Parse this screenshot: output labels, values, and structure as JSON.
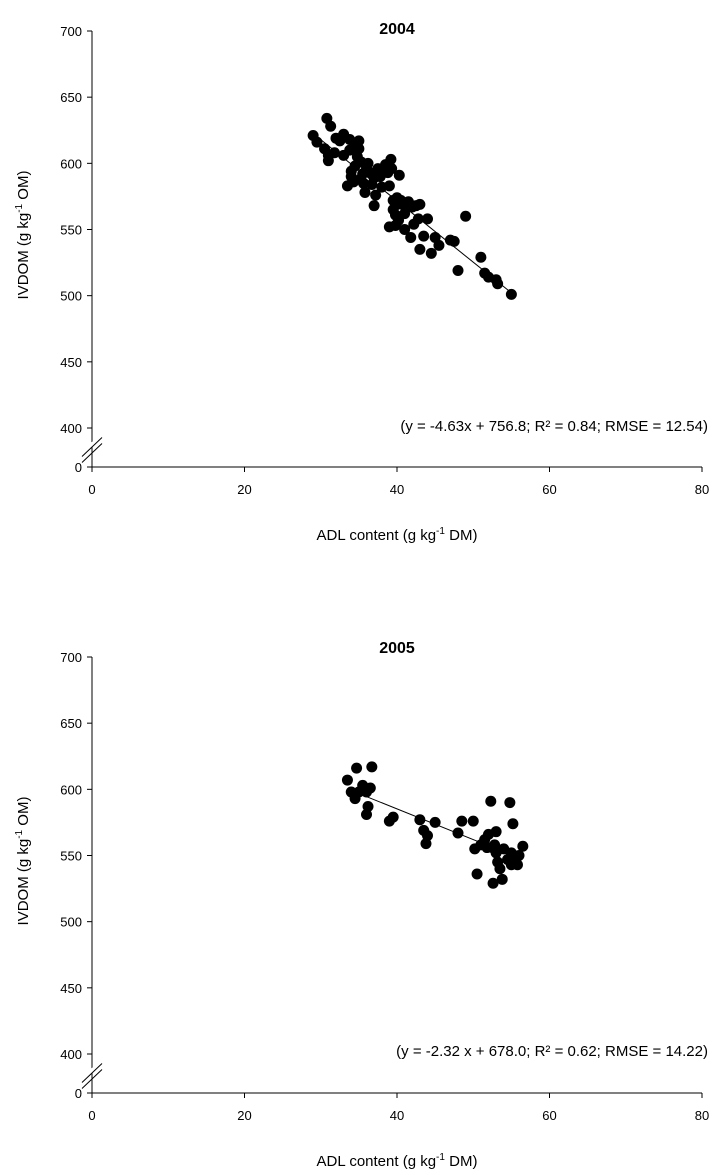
{
  "chart_data": [
    {
      "type": "scatter",
      "title": "2004",
      "xlabel": "ADL content (g kg",
      "xlabel_sup": "-1",
      "xlabel_tail": " DM)",
      "ylabel": "IVDOM (g kg",
      "ylabel_sup": "-1",
      "ylabel_tail": " OM)",
      "equation": "(y = -4.63x + 756.8; R² = 0.84; RMSE = 12.54)",
      "xlim": [
        0,
        80
      ],
      "ylim": [
        400,
        700
      ],
      "x_ticks": [
        "0",
        "20",
        "40",
        "60",
        "80"
      ],
      "y_ticks": [
        "400",
        "450",
        "500",
        "550",
        "600",
        "650",
        "700"
      ],
      "y_zero_tick": "0",
      "broken_axis": true,
      "fit": {
        "slope": -4.63,
        "intercept": 756.8,
        "x_range": [
          29,
          55.5
        ]
      },
      "points": [
        [
          29,
          621
        ],
        [
          29.5,
          616
        ],
        [
          30.5,
          611
        ],
        [
          30.8,
          634
        ],
        [
          31,
          606
        ],
        [
          31,
          602
        ],
        [
          31.3,
          628
        ],
        [
          31.8,
          608
        ],
        [
          32,
          619
        ],
        [
          32.5,
          617
        ],
        [
          33,
          606
        ],
        [
          33,
          622
        ],
        [
          33.5,
          583
        ],
        [
          33.8,
          618
        ],
        [
          33.8,
          610
        ],
        [
          34,
          590
        ],
        [
          34,
          594
        ],
        [
          34.3,
          586
        ],
        [
          34.5,
          615
        ],
        [
          34.5,
          598
        ],
        [
          34.8,
          605
        ],
        [
          35,
          617
        ],
        [
          35,
          611
        ],
        [
          35.2,
          588
        ],
        [
          35.3,
          601
        ],
        [
          35.5,
          592
        ],
        [
          35.6,
          585
        ],
        [
          35.8,
          578
        ],
        [
          36,
          596
        ],
        [
          36.2,
          600
        ],
        [
          36.5,
          593
        ],
        [
          36.7,
          584
        ],
        [
          37,
          568
        ],
        [
          37,
          589
        ],
        [
          37.2,
          576
        ],
        [
          37.5,
          596
        ],
        [
          37.8,
          590
        ],
        [
          38,
          582
        ],
        [
          38.2,
          595
        ],
        [
          38.5,
          599
        ],
        [
          38.8,
          593
        ],
        [
          39,
          583
        ],
        [
          39,
          552
        ],
        [
          39.2,
          603
        ],
        [
          39.3,
          596
        ],
        [
          39.5,
          572
        ],
        [
          39.5,
          565
        ],
        [
          39.8,
          553
        ],
        [
          39.8,
          561
        ],
        [
          40,
          569
        ],
        [
          40,
          574
        ],
        [
          40.2,
          557
        ],
        [
          40.3,
          591
        ],
        [
          40.5,
          572
        ],
        [
          40.7,
          569
        ],
        [
          41,
          562
        ],
        [
          41,
          550
        ],
        [
          41.2,
          567
        ],
        [
          41.5,
          571
        ],
        [
          41.8,
          544
        ],
        [
          42,
          567
        ],
        [
          42.2,
          554
        ],
        [
          42.5,
          568
        ],
        [
          42.8,
          558
        ],
        [
          43,
          569
        ],
        [
          43,
          535
        ],
        [
          43.5,
          545
        ],
        [
          44,
          558
        ],
        [
          44.5,
          532
        ],
        [
          45,
          544
        ],
        [
          45.5,
          538
        ],
        [
          47,
          542
        ],
        [
          47.5,
          541
        ],
        [
          48,
          519
        ],
        [
          49,
          560
        ],
        [
          51,
          529
        ],
        [
          51.5,
          517
        ],
        [
          52,
          514
        ],
        [
          53,
          512
        ],
        [
          53.2,
          509
        ],
        [
          55,
          501
        ]
      ]
    },
    {
      "type": "scatter",
      "title": "2005",
      "xlabel": "ADL content (g kg",
      "xlabel_sup": "-1",
      "xlabel_tail": " DM)",
      "ylabel": "IVDOM (g kg",
      "ylabel_sup": "-1",
      "ylabel_tail": " OM)",
      "equation": "(y = -2.32 x + 678.0; R² = 0.62; RMSE = 14.22)",
      "xlim": [
        0,
        80
      ],
      "ylim": [
        400,
        700
      ],
      "x_ticks": [
        "0",
        "20",
        "40",
        "60",
        "80"
      ],
      "y_ticks": [
        "400",
        "450",
        "500",
        "550",
        "600",
        "650",
        "700"
      ],
      "y_zero_tick": "0",
      "broken_axis": true,
      "fit": {
        "slope": -2.32,
        "intercept": 678.0,
        "x_range": [
          33.5,
          56
        ]
      },
      "points": [
        [
          33.5,
          607
        ],
        [
          34,
          598
        ],
        [
          34.5,
          593
        ],
        [
          34.7,
          616
        ],
        [
          35,
          598
        ],
        [
          35.5,
          603
        ],
        [
          36,
          598
        ],
        [
          36,
          581
        ],
        [
          36.2,
          587
        ],
        [
          36.5,
          601
        ],
        [
          36.7,
          617
        ],
        [
          39,
          576
        ],
        [
          39.5,
          579
        ],
        [
          43,
          577
        ],
        [
          43.5,
          569
        ],
        [
          43.8,
          559
        ],
        [
          44,
          565
        ],
        [
          45,
          575
        ],
        [
          48,
          567
        ],
        [
          48.5,
          576
        ],
        [
          50,
          576
        ],
        [
          50.2,
          555
        ],
        [
          50.5,
          536
        ],
        [
          51,
          558
        ],
        [
          51.5,
          562
        ],
        [
          51.8,
          556
        ],
        [
          52,
          566
        ],
        [
          52.3,
          591
        ],
        [
          52.5,
          556
        ],
        [
          52.6,
          529
        ],
        [
          52.8,
          558
        ],
        [
          53,
          568
        ],
        [
          53,
          552
        ],
        [
          53.2,
          545
        ],
        [
          53.5,
          540
        ],
        [
          53.8,
          532
        ],
        [
          54,
          555
        ],
        [
          54.5,
          547
        ],
        [
          54.8,
          590
        ],
        [
          55,
          552
        ],
        [
          55,
          543
        ],
        [
          55.2,
          574
        ],
        [
          55.5,
          549
        ],
        [
          55.8,
          543
        ],
        [
          56,
          550
        ],
        [
          56.5,
          557
        ]
      ]
    }
  ]
}
